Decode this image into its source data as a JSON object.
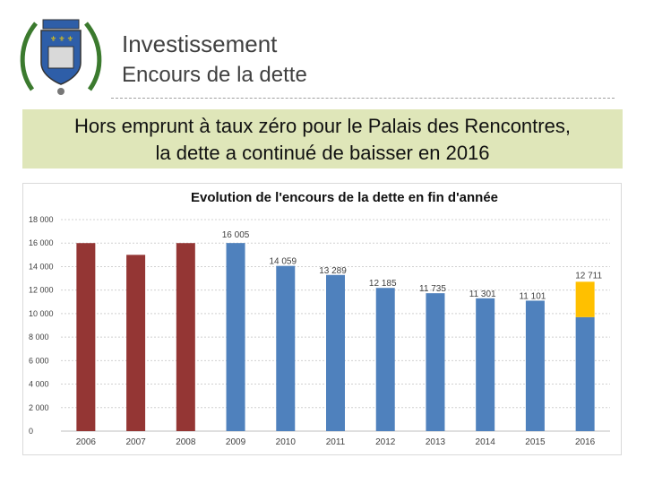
{
  "header": {
    "title": "Investissement",
    "subtitle": "Encours de la dette"
  },
  "banner": {
    "line1": "Hors emprunt à taux zéro pour le Palais des Rencontres,",
    "line2": "la dette a continué de baisser en 2016"
  },
  "colors": {
    "historic_bar": "#943634",
    "main_bar": "#4f81bd",
    "increase_bar": "#ffc000",
    "banner_bg": "#dfe6b9",
    "crest_blue": "#2e5ea8",
    "crest_green": "#3b7a2e"
  },
  "chart_data": {
    "type": "bar",
    "title": "Evolution de l'encours de la dette en fin d'année",
    "categories": [
      "2006",
      "2007",
      "2008",
      "2009",
      "2010",
      "2011",
      "2012",
      "2013",
      "2014",
      "2015",
      "2016"
    ],
    "values": [
      16000,
      15000,
      16000,
      16005,
      14059,
      13289,
      12185,
      11735,
      11301,
      11101,
      12711
    ],
    "data_labels": [
      "",
      "",
      "",
      "16 005",
      "14 059",
      "13 289",
      "12 185",
      "11 735",
      "11 301",
      "11 101",
      "12 711"
    ],
    "stacked_2016": {
      "base": 9700,
      "top": 12711
    },
    "ylim": [
      0,
      18000
    ],
    "yticks": [
      0,
      2000,
      4000,
      6000,
      8000,
      10000,
      12000,
      14000,
      16000,
      18000
    ],
    "ytick_labels": [
      "0",
      "2 000",
      "4 000",
      "6 000",
      "8 000",
      "10 000",
      "12 000",
      "14 000",
      "16 000",
      "18 000"
    ],
    "grid": true,
    "legend": "none"
  }
}
